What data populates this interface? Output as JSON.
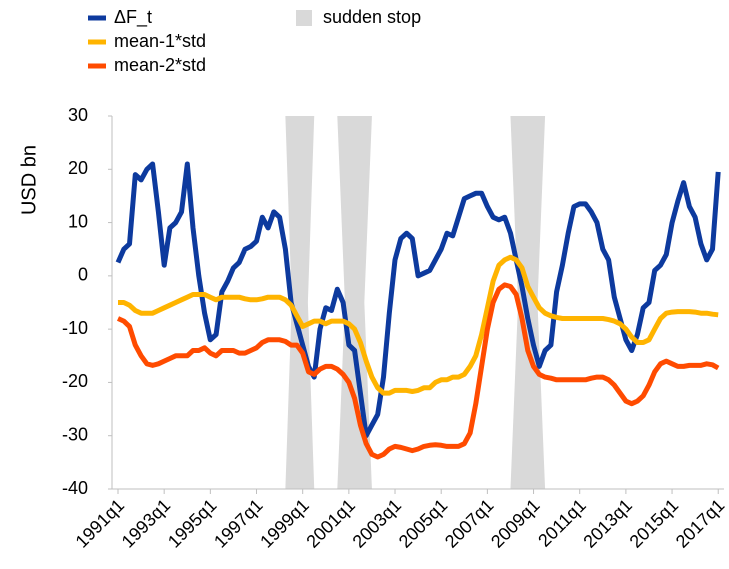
{
  "chart_data": {
    "type": "line",
    "y_label": "USD bn",
    "x": [
      1991,
      1991.25,
      1991.5,
      1991.75,
      1992,
      1992.25,
      1992.5,
      1992.75,
      1993,
      1993.25,
      1993.5,
      1993.75,
      1994,
      1994.25,
      1994.5,
      1994.75,
      1995,
      1995.25,
      1995.5,
      1995.75,
      1996,
      1996.25,
      1996.5,
      1996.75,
      1997,
      1997.25,
      1997.5,
      1997.75,
      1998,
      1998.25,
      1998.5,
      1998.75,
      1999,
      1999.25,
      1999.5,
      1999.75,
      2000,
      2000.25,
      2000.5,
      2000.75,
      2001,
      2001.25,
      2001.5,
      2001.75,
      2002,
      2002.25,
      2002.5,
      2002.75,
      2003,
      2003.25,
      2003.5,
      2003.75,
      2004,
      2004.25,
      2004.5,
      2004.75,
      2005,
      2005.25,
      2005.5,
      2005.75,
      2006,
      2006.25,
      2006.5,
      2006.75,
      2007,
      2007.25,
      2007.5,
      2007.75,
      2008,
      2008.25,
      2008.5,
      2008.75,
      2009,
      2009.25,
      2009.5,
      2009.75,
      2010,
      2010.25,
      2010.5,
      2010.75,
      2011,
      2011.25,
      2011.5,
      2011.75,
      2012,
      2012.25,
      2012.5,
      2012.75,
      2013,
      2013.25,
      2013.5,
      2013.75,
      2014,
      2014.25,
      2014.5,
      2014.75,
      2015,
      2015.25,
      2015.5,
      2015.75,
      2016,
      2016.25,
      2016.5,
      2016.75,
      2017
    ],
    "series": [
      {
        "name": "ΔF_t",
        "color": "#0d3a9e",
        "values": [
          2.5,
          5,
          6,
          19,
          18,
          20,
          21,
          12,
          2,
          9,
          10,
          12,
          21,
          9,
          0,
          -7,
          -12,
          -11,
          -3,
          -1,
          1.5,
          2.5,
          5,
          5.5,
          6.5,
          11,
          9,
          12,
          11,
          5,
          -5,
          -9,
          -13,
          -17,
          -19,
          -10,
          -6,
          -6.5,
          -2.5,
          -5,
          -13,
          -14,
          -22,
          -30,
          -28,
          -26,
          -19,
          -7,
          3,
          7,
          8,
          7,
          0,
          0.5,
          1,
          3,
          5,
          8,
          7.5,
          11,
          14.5,
          15,
          15.5,
          15.5,
          13,
          11,
          10.5,
          11,
          8,
          3,
          -2,
          -8,
          -13,
          -17,
          -14,
          -13,
          -3,
          2,
          8,
          13,
          13.5,
          13.5,
          12,
          10,
          5,
          3,
          -4,
          -8,
          -12,
          -14,
          -11,
          -6,
          -5,
          1,
          2,
          4,
          10,
          14,
          17.5,
          13,
          11,
          6,
          3,
          5,
          19.5
        ]
      },
      {
        "name": "mean-1*std",
        "color": "#ffb400",
        "values": [
          -5,
          -5,
          -5.5,
          -6.5,
          -7,
          -7,
          -7,
          -6.5,
          -6,
          -5.5,
          -5,
          -4.5,
          -4,
          -3.5,
          -3.5,
          -3.5,
          -4,
          -4.5,
          -4,
          -4,
          -4,
          -4,
          -4.3,
          -4.5,
          -4.5,
          -4.3,
          -4,
          -4,
          -4,
          -4.5,
          -5.5,
          -7.5,
          -9.5,
          -9,
          -8.5,
          -8.5,
          -9,
          -8.5,
          -8.5,
          -8.5,
          -9,
          -10,
          -12.5,
          -16,
          -19,
          -21,
          -22,
          -22,
          -21.5,
          -21.5,
          -21.5,
          -21.7,
          -21.5,
          -21,
          -21,
          -20,
          -19.5,
          -19.5,
          -19,
          -19,
          -18.5,
          -17,
          -15,
          -11,
          -6,
          -1,
          2,
          3,
          3.5,
          3,
          1.5,
          -2,
          -4,
          -6,
          -7,
          -7.5,
          -7.8,
          -8,
          -8,
          -8,
          -8,
          -8,
          -8,
          -8,
          -8,
          -8.2,
          -8.5,
          -9,
          -10,
          -11.5,
          -12.5,
          -12.5,
          -12,
          -10,
          -8,
          -7,
          -6.8,
          -6.7,
          -6.7,
          -6.7,
          -6.8,
          -7,
          -7,
          -7.2,
          -7.3
        ]
      },
      {
        "name": "mean-2*std",
        "color": "#ff4b00",
        "values": [
          -8,
          -8.5,
          -9.5,
          -13,
          -15,
          -16.5,
          -16.8,
          -16.5,
          -16,
          -15.5,
          -15,
          -15,
          -15,
          -14,
          -14,
          -13.5,
          -14.5,
          -15,
          -14,
          -14,
          -14,
          -14.5,
          -14.5,
          -14,
          -13.5,
          -12.5,
          -12,
          -12,
          -12,
          -12.3,
          -13,
          -13,
          -14.5,
          -18,
          -18.5,
          -17.5,
          -17,
          -17,
          -17.5,
          -18.5,
          -20,
          -23,
          -28,
          -31.5,
          -33.5,
          -34,
          -33.5,
          -32.5,
          -32,
          -32.2,
          -32.5,
          -32.8,
          -32.5,
          -32,
          -31.8,
          -31.7,
          -31.8,
          -32,
          -32,
          -32,
          -31.5,
          -29.5,
          -24,
          -17,
          -10,
          -5,
          -2.5,
          -1.7,
          -2,
          -3.5,
          -8,
          -14,
          -17,
          -18.5,
          -19,
          -19.2,
          -19.5,
          -19.5,
          -19.5,
          -19.5,
          -19.5,
          -19.5,
          -19.2,
          -19,
          -19,
          -19.5,
          -20.5,
          -22,
          -23.5,
          -24,
          -23.5,
          -22.5,
          -20.5,
          -18,
          -16.5,
          -16,
          -16.5,
          -17,
          -17,
          -16.8,
          -16.8,
          -16.8,
          -16.5,
          -16.7,
          -17.3
        ]
      }
    ],
    "bands": {
      "name": "sudden stop",
      "color": "#d9d9d9",
      "periods": [
        [
          1998.25,
          1999.5
        ],
        [
          2000.5,
          2002.0
        ],
        [
          2008.0,
          2009.5
        ]
      ]
    },
    "xlim": [
      1991,
      2017.25
    ],
    "ylim": [
      -40,
      30
    ],
    "xticks": [
      {
        "value": 1991,
        "label": "1991q1"
      },
      {
        "value": 1993,
        "label": "1993q1"
      },
      {
        "value": 1995,
        "label": "1995q1"
      },
      {
        "value": 1997,
        "label": "1997q1"
      },
      {
        "value": 1999,
        "label": "1999q1"
      },
      {
        "value": 2001,
        "label": "2001q1"
      },
      {
        "value": 2003,
        "label": "2003q1"
      },
      {
        "value": 2005,
        "label": "2005q1"
      },
      {
        "value": 2007,
        "label": "2007q1"
      },
      {
        "value": 2009,
        "label": "2009q1"
      },
      {
        "value": 2011,
        "label": "2011q1"
      },
      {
        "value": 2013,
        "label": "2013q1"
      },
      {
        "value": 2015,
        "label": "2015q1"
      },
      {
        "value": 2017,
        "label": "2017q1"
      }
    ],
    "yticks": [
      -40,
      -30,
      -20,
      -10,
      0,
      10,
      20,
      30
    ]
  }
}
